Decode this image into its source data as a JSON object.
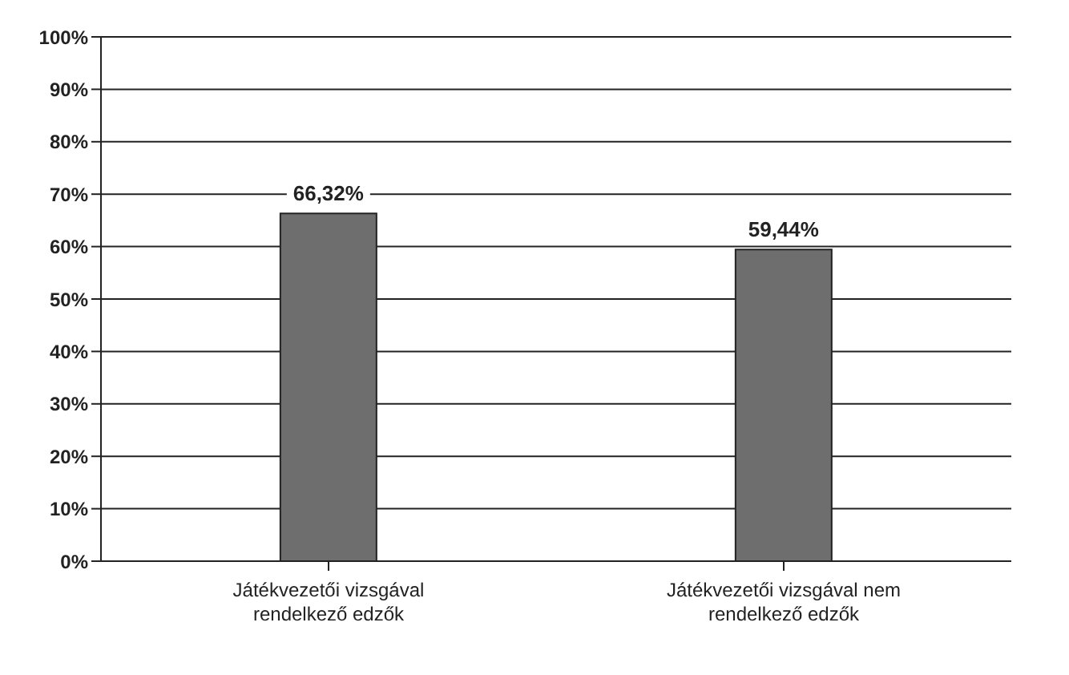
{
  "chart_data": {
    "type": "bar",
    "categories": [
      "Játékvezetői vizsgával rendelkező edzők",
      "Játékvezetői vizsgával nem rendelkező edzők"
    ],
    "values": [
      66.32,
      59.44
    ],
    "value_labels": [
      "66,32%",
      "59,44%"
    ],
    "color": "#6e6e6e",
    "ylim": [
      0,
      100
    ],
    "yticks": [
      {
        "value": 0,
        "label": "0%"
      },
      {
        "value": 10,
        "label": "10%"
      },
      {
        "value": 20,
        "label": "20%"
      },
      {
        "value": 30,
        "label": "30%"
      },
      {
        "value": 40,
        "label": "40%"
      },
      {
        "value": 50,
        "label": "50%"
      },
      {
        "value": 60,
        "label": "60%"
      },
      {
        "value": 70,
        "label": "70%"
      },
      {
        "value": 80,
        "label": "80%"
      },
      {
        "value": 90,
        "label": "90%"
      },
      {
        "value": 100,
        "label": "100%"
      }
    ],
    "grid": "y"
  }
}
